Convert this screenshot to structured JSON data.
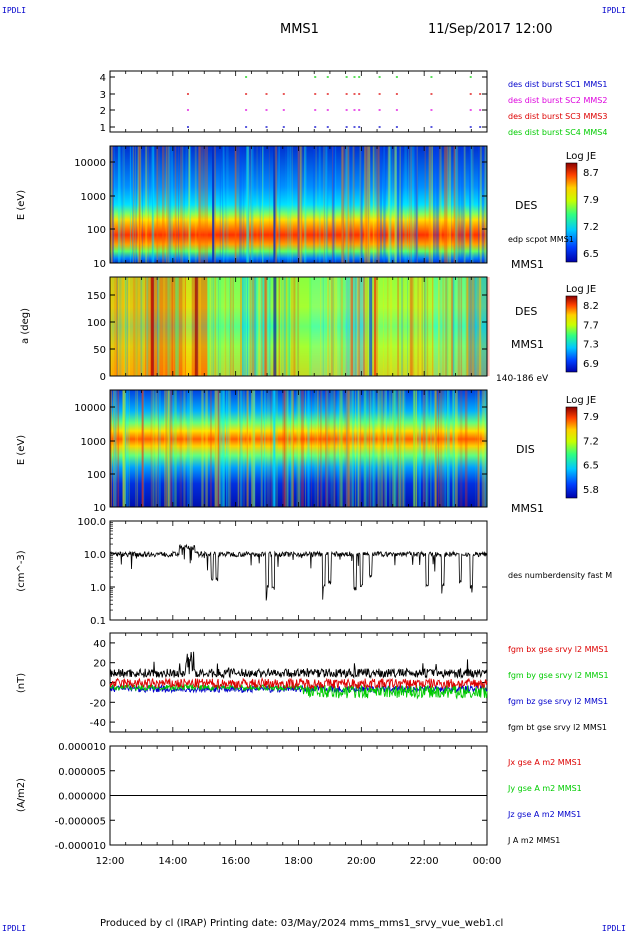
{
  "corner_labels": {
    "top_left": "IPDLI",
    "top_right": "IPDLI",
    "bottom_left": "IPDLI",
    "bottom_right": "IPDLI"
  },
  "header": {
    "spacecraft": "MMS1",
    "datetime": "11/Sep/2017 12:00"
  },
  "footer": "Produced by cl (IRAP)   Printing date: 03/May/2024   mms_mms1_srvy_vue_web1.cl",
  "colors": {
    "red": "#dd0000",
    "magenta": "#dd00dd",
    "green": "#00cc00",
    "blue": "#0000cc",
    "black": "#000000"
  },
  "chart_data": [
    {
      "id": "burst",
      "type": "scatter",
      "y_ticks": [
        "1",
        "2",
        "3",
        "4"
      ],
      "legend": [
        {
          "label": "des dist burst SC1 MMS1",
          "color": "#0000cc"
        },
        {
          "label": "des dist burst SC2 MMS2",
          "color": "#dd00dd"
        },
        {
          "label": "des dist burst SC3 MMS3",
          "color": "#dd0000"
        },
        {
          "label": "des dist burst SC4 MMS4",
          "color": "#00cc00"
        }
      ],
      "burst_hours": [
        14.45,
        16.3,
        16.95,
        17.5,
        18.5,
        18.9,
        19.5,
        19.75,
        19.9,
        20.55,
        21.1,
        22.2,
        23.45,
        23.75
      ]
    },
    {
      "id": "des_energy",
      "type": "heatmap",
      "ylabel": "E (eV)",
      "y_scale": "log",
      "y_ticks": [
        "10",
        "100",
        "1000",
        "10000"
      ],
      "label": "DES",
      "sublabel": "edp scpot MMS1",
      "mms_label": "MMS1",
      "colorbar": {
        "title": "Log JE",
        "ticks": [
          "8.7",
          "7.9",
          "7.2",
          "6.5"
        ]
      }
    },
    {
      "id": "des_pitch",
      "type": "heatmap",
      "ylabel": "a (deg)",
      "y_ticks": [
        "0",
        "50",
        "100",
        "150"
      ],
      "label": "DES",
      "mms_label": "MMS1",
      "energy_range": "140-186 eV",
      "colorbar": {
        "title": "Log JE",
        "ticks": [
          "8.2",
          "7.7",
          "7.3",
          "6.9"
        ]
      }
    },
    {
      "id": "dis_energy",
      "type": "heatmap",
      "ylabel": "E (eV)",
      "y_scale": "log",
      "y_ticks": [
        "10",
        "100",
        "1000",
        "10000"
      ],
      "label": "DIS",
      "mms_label": "MMS1",
      "colorbar": {
        "title": "Log JE",
        "ticks": [
          "7.9",
          "7.2",
          "6.5",
          "5.8"
        ]
      }
    },
    {
      "id": "density",
      "type": "line",
      "ylabel": "(cm^-3)",
      "y_scale": "log",
      "y_ticks": [
        "0.1",
        "1.0",
        "10.0",
        "100.0"
      ],
      "ylim": [
        0.1,
        100
      ],
      "legend": [
        {
          "label": "des numberdensity fast M",
          "color": "#000000"
        }
      ],
      "baseline": 10,
      "dips": [
        {
          "hour": 15.25,
          "value": 1.6
        },
        {
          "hour": 15.4,
          "value": 1.5
        },
        {
          "hour": 17.0,
          "value": 0.9
        },
        {
          "hour": 17.2,
          "value": 0.8
        },
        {
          "hour": 18.8,
          "value": 0.9
        },
        {
          "hour": 19.0,
          "value": 1.2
        },
        {
          "hour": 19.8,
          "value": 0.8
        },
        {
          "hour": 20.0,
          "value": 1.0
        },
        {
          "hour": 20.3,
          "value": 1.8
        },
        {
          "hour": 22.1,
          "value": 0.9
        },
        {
          "hour": 22.6,
          "value": 1.0
        },
        {
          "hour": 23.15,
          "value": 1.2
        },
        {
          "hour": 23.5,
          "value": 0.9
        }
      ]
    },
    {
      "id": "fgm",
      "type": "line",
      "ylabel": "(nT)",
      "y_ticks": [
        "-40",
        "-20",
        "0",
        "20",
        "40"
      ],
      "ylim": [
        -50,
        50
      ],
      "legend": [
        {
          "label": "fgm bx gse srvy l2 MMS1",
          "color": "#dd0000"
        },
        {
          "label": "fgm by gse srvy l2 MMS1",
          "color": "#00cc00"
        },
        {
          "label": "fgm bz gse srvy l2 MMS1",
          "color": "#0000cc"
        },
        {
          "label": "fgm bt gse srvy l2 MMS1",
          "color": "#000000"
        }
      ]
    },
    {
      "id": "current",
      "type": "line",
      "ylabel": "(A/m2)",
      "y_ticks": [
        "-0.000010",
        "-0.000005",
        "0.000000",
        "0.000005",
        "0.000010"
      ],
      "ylim": [
        -1e-05,
        1e-05
      ],
      "legend": [
        {
          "label": "Jx gse A m2 MMS1",
          "color": "#dd0000"
        },
        {
          "label": "Jy gse A m2 MMS1",
          "color": "#00cc00"
        },
        {
          "label": "Jz gse A m2 MMS1",
          "color": "#0000cc"
        },
        {
          "label": "J A m2 MMS1",
          "color": "#000000"
        }
      ]
    }
  ],
  "x_axis": {
    "ticks": [
      "12:00",
      "14:00",
      "16:00",
      "18:00",
      "20:00",
      "22:00",
      "00:00"
    ],
    "range_hours": [
      12,
      24
    ]
  }
}
